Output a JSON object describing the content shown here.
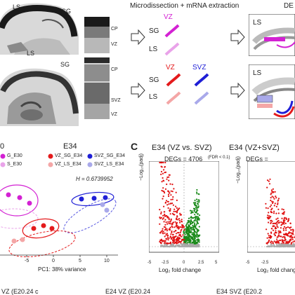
{
  "top": {
    "header_extract": "Microdissection + mRNA extraction",
    "header_right": "DE",
    "brain1": {
      "ls": "LS",
      "sg": "SG"
    },
    "brain2": {
      "ls": "LS",
      "sg": "SG"
    },
    "strip1": {
      "cp": "CP",
      "vz": "VZ"
    },
    "strip2": {
      "cp": "CP",
      "svz": "SVZ",
      "vz": "VZ"
    },
    "tubes1": {
      "vz": "VZ",
      "sg": "SG",
      "ls": "LS"
    },
    "tubes2": {
      "vz": "VZ",
      "svz": "SVZ",
      "sg": "SG",
      "ls": "LS"
    },
    "schematic1": {
      "ls": "LS"
    },
    "schematic2": {
      "ls": "LS"
    }
  },
  "pca": {
    "e30_label": "0",
    "e34_label": "E34",
    "legend": [
      "VZ_SG_E34",
      "SVZ_SG_E34",
      "VZ_LS_E34",
      "SVZ_LS_E34"
    ],
    "legend_left": [
      "G_E30",
      "S_E30"
    ],
    "h_stat": "H = 0.6739952",
    "xlabel": "PC1: 38% variance",
    "xticks": [
      "-5",
      "0",
      "5",
      "10"
    ],
    "colors": {
      "vz_sg": "#e41a1c",
      "vz_ls": "#f4a6a6",
      "svz_sg": "#1f1fd6",
      "svz_ls": "#a9a9ea",
      "e30": "#d321d3"
    }
  },
  "panel_c": {
    "letter": "C",
    "title1": "E34 (VZ vs. SVZ)",
    "title2": "E34 (VZ+SVZ)",
    "fdr_note": "(FDR < 0.1)",
    "degs1": "DEGs = 4706",
    "degs2": "DEGs =",
    "ylabel": "−Log₁₀(padj)",
    "xlabel": "Log₂ fold change",
    "xticks1": [
      "-5",
      "-2.5",
      "0",
      "2.5",
      "5"
    ],
    "yticks1": [
      "0",
      "10",
      "20",
      "30",
      "40",
      "50",
      "60",
      "70",
      "80",
      "90",
      "100"
    ],
    "xticks2": [
      "-5",
      "-2.5"
    ],
    "colors": {
      "down": "#e01010",
      "up": "#1a8a1a",
      "ns": "#aaaaaa"
    }
  },
  "bottom": {
    "labels": [
      "VZ (E20.24 c",
      "E24 VZ (E20.24",
      "E34 SVZ (E20.2"
    ]
  }
}
